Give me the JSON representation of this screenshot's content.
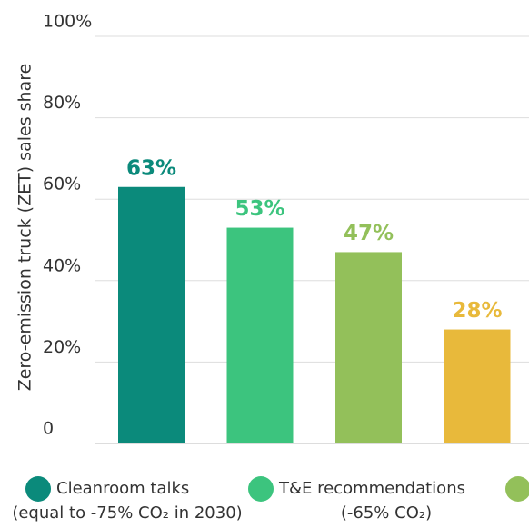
{
  "chart_data": {
    "type": "bar",
    "y_label": "Zero-emission truck (ZET) sales share",
    "ylim": [
      0,
      100
    ],
    "yticks": [
      0,
      {
        "value": 20,
        "label": "20%"
      },
      {
        "value": 40,
        "label": "40%"
      },
      {
        "value": 60,
        "label": "60%"
      },
      {
        "value": 80,
        "label": "80%"
      },
      {
        "value": 100,
        "label": "100%"
      }
    ],
    "grid": true,
    "series": [
      {
        "name": [
          "Cleanroom talks",
          "(equal to -75% CO₂ in 2030)"
        ],
        "color": "#0b8a7b",
        "values": [
          63
        ],
        "value_labels": [
          "63%"
        ]
      },
      {
        "name": [
          "T&E recommendations",
          "(-65% CO₂)"
        ],
        "color": "#3cc47e",
        "values": [
          53
        ],
        "value_labels": [
          "53%"
        ]
      },
      {
        "color": "#93c05a",
        "values": [
          47
        ],
        "value_labels": [
          "47%"
        ]
      },
      {
        "color": "#e8b93b",
        "values": [
          28
        ],
        "value_labels": [
          "28%"
        ]
      }
    ]
  }
}
